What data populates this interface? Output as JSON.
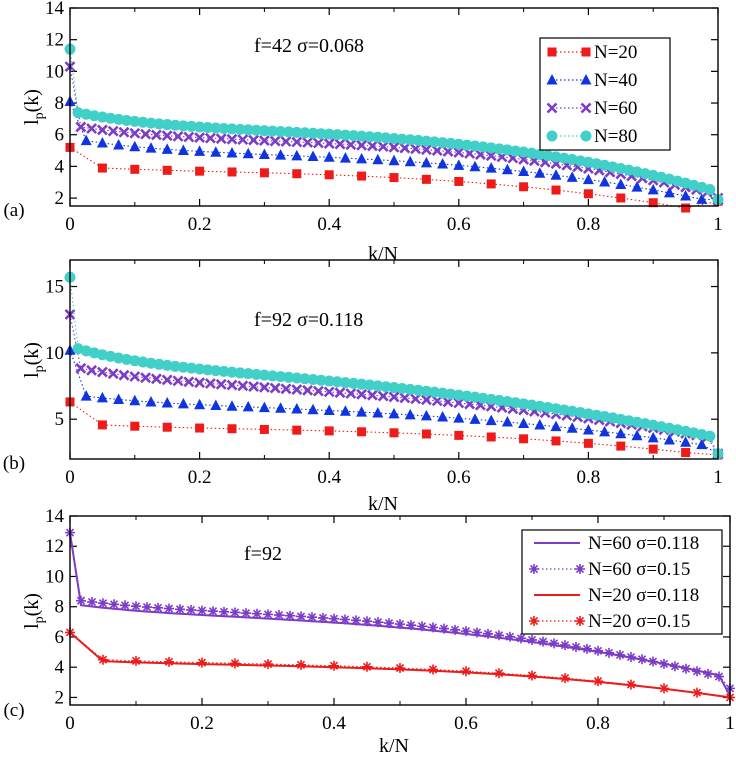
{
  "chart_data": [
    {
      "panel": "(a)",
      "type": "scatter",
      "annotation": "f=42 σ=0.068",
      "xlabel": "k/N",
      "ylabel": "l_p(k)",
      "xlim": [
        0,
        1
      ],
      "ylim": [
        1.5,
        14
      ],
      "xticks": [
        0,
        0.2,
        0.4,
        0.6,
        0.8,
        1
      ],
      "xtick_labels": [
        "0",
        "0.2",
        "0.4",
        "0.6",
        "0.8",
        "1"
      ],
      "yticks": [
        2,
        4,
        6,
        8,
        10,
        12,
        14
      ],
      "ytick_labels": [
        "2",
        "4",
        "6",
        "8",
        "10",
        "12",
        "14"
      ],
      "legend_position": "top-right",
      "series": [
        {
          "name": "N=20",
          "N": 20,
          "marker": "square",
          "color": "#ee1b1b",
          "a": 5.2,
          "b": 4.0,
          "c": 3.6,
          "d": 2.6,
          "p": 3,
          "w": 6,
          "end": 1.8
        },
        {
          "name": "N=40",
          "N": 40,
          "marker": "triangle",
          "color": "#1034e0",
          "a": 8.1,
          "b": 5.8,
          "c": 4.7,
          "d": 3.0,
          "p": 3,
          "w": 7,
          "end": 1.9
        },
        {
          "name": "N=60",
          "N": 60,
          "marker": "x",
          "color": "#7d3cc8",
          "a": 10.3,
          "b": 6.6,
          "c": 5.6,
          "d": 3.4,
          "p": 3,
          "w": 7,
          "end": 2.0
        },
        {
          "name": "N=80",
          "N": 80,
          "marker": "circle",
          "color": "#40d0c8",
          "a": 11.4,
          "b": 7.5,
          "c": 6.2,
          "d": 3.8,
          "p": 3,
          "w": 7,
          "end": 1.9
        }
      ]
    },
    {
      "panel": "(b)",
      "type": "scatter",
      "annotation": "f=92 σ=0.118",
      "xlabel": "k/N",
      "ylabel": "l_p(k)",
      "xlim": [
        0,
        1
      ],
      "ylim": [
        2,
        17
      ],
      "xticks": [
        0,
        0.2,
        0.4,
        0.6,
        0.8,
        1
      ],
      "xtick_labels": [
        "0",
        "0.2",
        "0.4",
        "0.6",
        "0.8",
        "1"
      ],
      "yticks": [
        5,
        10,
        15
      ],
      "ytick_labels": [
        "5",
        "10",
        "15"
      ],
      "series": [
        {
          "name": "N=20",
          "N": 20,
          "marker": "square",
          "color": "#ee1b1b",
          "a": 6.3,
          "b": 4.7,
          "c": 4.2,
          "d": 2.0,
          "p": 3,
          "w": 6,
          "end": 2.3
        },
        {
          "name": "N=40",
          "N": 40,
          "marker": "triangle",
          "color": "#1034e0",
          "a": 10.2,
          "b": 6.9,
          "c": 5.9,
          "d": 3.0,
          "p": 2.5,
          "w": 7,
          "end": 2.4
        },
        {
          "name": "N=60",
          "N": 60,
          "marker": "x",
          "color": "#7d3cc8",
          "a": 12.9,
          "b": 9.0,
          "c": 7.5,
          "d": 4.0,
          "p": 2.2,
          "w": 7,
          "end": 2.4
        },
        {
          "name": "N=80",
          "N": 80,
          "marker": "circle",
          "color": "#40d0c8",
          "a": 15.7,
          "b": 10.5,
          "c": 8.6,
          "d": 5.0,
          "p": 2.0,
          "w": 8,
          "end": 2.4
        }
      ]
    },
    {
      "panel": "(c)",
      "type": "line",
      "annotation": "f=92",
      "xlabel": "k/N",
      "ylabel": "l_p(k)",
      "xlim": [
        0,
        1
      ],
      "ylim": [
        1.5,
        14
      ],
      "xticks": [
        0,
        0.2,
        0.4,
        0.6,
        0.8,
        1
      ],
      "xtick_labels": [
        "0",
        "0.2",
        "0.4",
        "0.6",
        "0.8",
        "1"
      ],
      "yticks": [
        2,
        4,
        6,
        8,
        10,
        12,
        14
      ],
      "ytick_labels": [
        "2",
        "4",
        "6",
        "8",
        "10",
        "12",
        "14"
      ],
      "legend_position": "top-right",
      "series": [
        {
          "name": "N=60 σ=0.118",
          "N": 60,
          "style": "solid",
          "marker": "none",
          "color": "#7d3cc8",
          "a": 12.9,
          "b": 8.2,
          "c": 7.3,
          "d": 4.0,
          "p": 2.5,
          "w": 7,
          "end": 2.1
        },
        {
          "name": "N=60 σ=0.15",
          "N": 60,
          "style": "dotted",
          "marker": "star",
          "color": "#7d3cc8",
          "a": 12.9,
          "b": 8.5,
          "c": 7.6,
          "d": 4.4,
          "p": 2.5,
          "w": 7,
          "end": 2.6
        },
        {
          "name": "N=20 σ=0.118",
          "N": 20,
          "style": "solid",
          "marker": "none",
          "color": "#ee1b1b",
          "a": 6.3,
          "b": 4.5,
          "c": 4.1,
          "d": 2.1,
          "p": 3,
          "w": 6,
          "end": 2.0
        },
        {
          "name": "N=20 σ=0.15",
          "N": 20,
          "style": "dotted",
          "marker": "star",
          "color": "#ee1b1b",
          "a": 6.3,
          "b": 4.6,
          "c": 4.2,
          "d": 2.2,
          "p": 3,
          "w": 6,
          "end": 2.0
        }
      ]
    }
  ]
}
